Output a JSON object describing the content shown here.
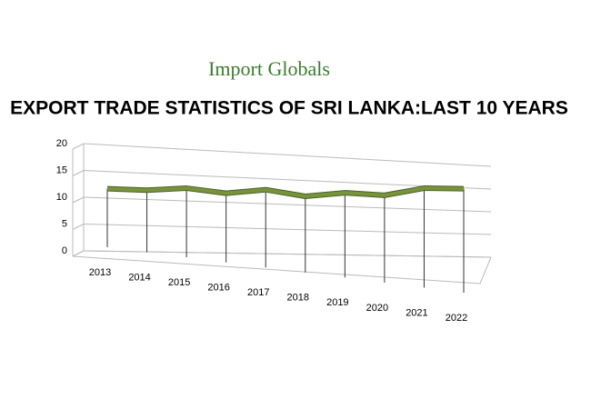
{
  "logo": "Import Globals",
  "chart_data": {
    "type": "line",
    "title": "EXPORT TRADE STATISTICS OF SRI LANKA:LAST 10 YEARS",
    "categories": [
      "2013",
      "2014",
      "2015",
      "2016",
      "2017",
      "2018",
      "2019",
      "2020",
      "2021",
      "2022"
    ],
    "values": [
      11.5,
      11.2,
      11.6,
      10.6,
      11.3,
      10.0,
      10.7,
      10.2,
      11.6,
      11.5
    ],
    "color": "#77933c",
    "ylim": [
      0,
      20
    ],
    "yticks": [
      0,
      5,
      10,
      15,
      20
    ],
    "grid": true
  }
}
